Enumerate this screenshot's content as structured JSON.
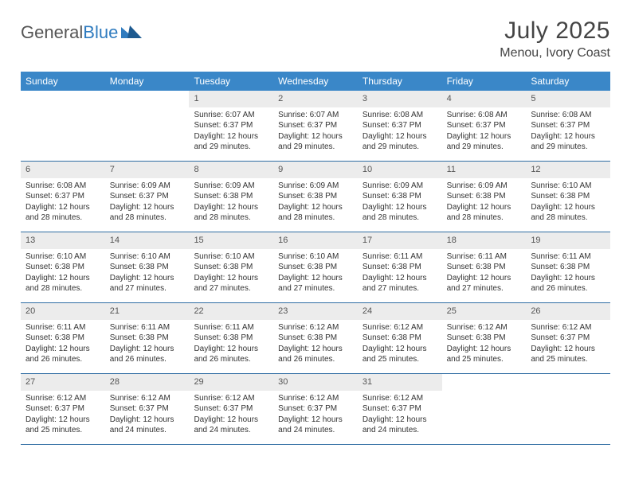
{
  "logo": {
    "text1": "General",
    "text2": "Blue"
  },
  "title": "July 2025",
  "location": "Menou, Ivory Coast",
  "colors": {
    "header_bg": "#3a87c8",
    "header_text": "#ffffff",
    "row_divider": "#2f6da3",
    "day_number_bg": "#ececec",
    "logo_blue": "#2f7bbf"
  },
  "weekdays": [
    "Sunday",
    "Monday",
    "Tuesday",
    "Wednesday",
    "Thursday",
    "Friday",
    "Saturday"
  ],
  "weeks": [
    [
      null,
      null,
      {
        "n": "1",
        "sr": "Sunrise: 6:07 AM",
        "ss": "Sunset: 6:37 PM",
        "d1": "Daylight: 12 hours",
        "d2": "and 29 minutes."
      },
      {
        "n": "2",
        "sr": "Sunrise: 6:07 AM",
        "ss": "Sunset: 6:37 PM",
        "d1": "Daylight: 12 hours",
        "d2": "and 29 minutes."
      },
      {
        "n": "3",
        "sr": "Sunrise: 6:08 AM",
        "ss": "Sunset: 6:37 PM",
        "d1": "Daylight: 12 hours",
        "d2": "and 29 minutes."
      },
      {
        "n": "4",
        "sr": "Sunrise: 6:08 AM",
        "ss": "Sunset: 6:37 PM",
        "d1": "Daylight: 12 hours",
        "d2": "and 29 minutes."
      },
      {
        "n": "5",
        "sr": "Sunrise: 6:08 AM",
        "ss": "Sunset: 6:37 PM",
        "d1": "Daylight: 12 hours",
        "d2": "and 29 minutes."
      }
    ],
    [
      {
        "n": "6",
        "sr": "Sunrise: 6:08 AM",
        "ss": "Sunset: 6:37 PM",
        "d1": "Daylight: 12 hours",
        "d2": "and 28 minutes."
      },
      {
        "n": "7",
        "sr": "Sunrise: 6:09 AM",
        "ss": "Sunset: 6:37 PM",
        "d1": "Daylight: 12 hours",
        "d2": "and 28 minutes."
      },
      {
        "n": "8",
        "sr": "Sunrise: 6:09 AM",
        "ss": "Sunset: 6:38 PM",
        "d1": "Daylight: 12 hours",
        "d2": "and 28 minutes."
      },
      {
        "n": "9",
        "sr": "Sunrise: 6:09 AM",
        "ss": "Sunset: 6:38 PM",
        "d1": "Daylight: 12 hours",
        "d2": "and 28 minutes."
      },
      {
        "n": "10",
        "sr": "Sunrise: 6:09 AM",
        "ss": "Sunset: 6:38 PM",
        "d1": "Daylight: 12 hours",
        "d2": "and 28 minutes."
      },
      {
        "n": "11",
        "sr": "Sunrise: 6:09 AM",
        "ss": "Sunset: 6:38 PM",
        "d1": "Daylight: 12 hours",
        "d2": "and 28 minutes."
      },
      {
        "n": "12",
        "sr": "Sunrise: 6:10 AM",
        "ss": "Sunset: 6:38 PM",
        "d1": "Daylight: 12 hours",
        "d2": "and 28 minutes."
      }
    ],
    [
      {
        "n": "13",
        "sr": "Sunrise: 6:10 AM",
        "ss": "Sunset: 6:38 PM",
        "d1": "Daylight: 12 hours",
        "d2": "and 28 minutes."
      },
      {
        "n": "14",
        "sr": "Sunrise: 6:10 AM",
        "ss": "Sunset: 6:38 PM",
        "d1": "Daylight: 12 hours",
        "d2": "and 27 minutes."
      },
      {
        "n": "15",
        "sr": "Sunrise: 6:10 AM",
        "ss": "Sunset: 6:38 PM",
        "d1": "Daylight: 12 hours",
        "d2": "and 27 minutes."
      },
      {
        "n": "16",
        "sr": "Sunrise: 6:10 AM",
        "ss": "Sunset: 6:38 PM",
        "d1": "Daylight: 12 hours",
        "d2": "and 27 minutes."
      },
      {
        "n": "17",
        "sr": "Sunrise: 6:11 AM",
        "ss": "Sunset: 6:38 PM",
        "d1": "Daylight: 12 hours",
        "d2": "and 27 minutes."
      },
      {
        "n": "18",
        "sr": "Sunrise: 6:11 AM",
        "ss": "Sunset: 6:38 PM",
        "d1": "Daylight: 12 hours",
        "d2": "and 27 minutes."
      },
      {
        "n": "19",
        "sr": "Sunrise: 6:11 AM",
        "ss": "Sunset: 6:38 PM",
        "d1": "Daylight: 12 hours",
        "d2": "and 26 minutes."
      }
    ],
    [
      {
        "n": "20",
        "sr": "Sunrise: 6:11 AM",
        "ss": "Sunset: 6:38 PM",
        "d1": "Daylight: 12 hours",
        "d2": "and 26 minutes."
      },
      {
        "n": "21",
        "sr": "Sunrise: 6:11 AM",
        "ss": "Sunset: 6:38 PM",
        "d1": "Daylight: 12 hours",
        "d2": "and 26 minutes."
      },
      {
        "n": "22",
        "sr": "Sunrise: 6:11 AM",
        "ss": "Sunset: 6:38 PM",
        "d1": "Daylight: 12 hours",
        "d2": "and 26 minutes."
      },
      {
        "n": "23",
        "sr": "Sunrise: 6:12 AM",
        "ss": "Sunset: 6:38 PM",
        "d1": "Daylight: 12 hours",
        "d2": "and 26 minutes."
      },
      {
        "n": "24",
        "sr": "Sunrise: 6:12 AM",
        "ss": "Sunset: 6:38 PM",
        "d1": "Daylight: 12 hours",
        "d2": "and 25 minutes."
      },
      {
        "n": "25",
        "sr": "Sunrise: 6:12 AM",
        "ss": "Sunset: 6:38 PM",
        "d1": "Daylight: 12 hours",
        "d2": "and 25 minutes."
      },
      {
        "n": "26",
        "sr": "Sunrise: 6:12 AM",
        "ss": "Sunset: 6:37 PM",
        "d1": "Daylight: 12 hours",
        "d2": "and 25 minutes."
      }
    ],
    [
      {
        "n": "27",
        "sr": "Sunrise: 6:12 AM",
        "ss": "Sunset: 6:37 PM",
        "d1": "Daylight: 12 hours",
        "d2": "and 25 minutes."
      },
      {
        "n": "28",
        "sr": "Sunrise: 6:12 AM",
        "ss": "Sunset: 6:37 PM",
        "d1": "Daylight: 12 hours",
        "d2": "and 24 minutes."
      },
      {
        "n": "29",
        "sr": "Sunrise: 6:12 AM",
        "ss": "Sunset: 6:37 PM",
        "d1": "Daylight: 12 hours",
        "d2": "and 24 minutes."
      },
      {
        "n": "30",
        "sr": "Sunrise: 6:12 AM",
        "ss": "Sunset: 6:37 PM",
        "d1": "Daylight: 12 hours",
        "d2": "and 24 minutes."
      },
      {
        "n": "31",
        "sr": "Sunrise: 6:12 AM",
        "ss": "Sunset: 6:37 PM",
        "d1": "Daylight: 12 hours",
        "d2": "and 24 minutes."
      },
      null,
      null
    ]
  ]
}
